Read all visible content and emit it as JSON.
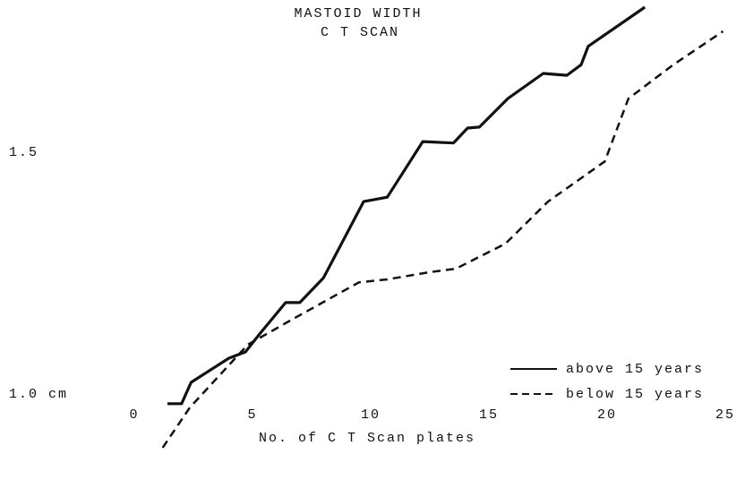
{
  "chart_data": {
    "type": "line",
    "title": "MASTOID WIDTH",
    "subtitle": "C T SCAN",
    "xlabel": "No. of C T Scan plates",
    "xlim": [
      0,
      25
    ],
    "xticks": [
      0,
      5,
      10,
      15,
      20,
      25
    ],
    "ylim": [
      0.8,
      1.8
    ],
    "yticks": [
      {
        "value": 1.0,
        "label": "1.0 cm"
      },
      1.5
    ],
    "grid": false,
    "legend": "lower right",
    "series": [
      {
        "name": "above 15 years",
        "color": "#111111",
        "style": "solid",
        "x": [
          1.4,
          2.0,
          2.4,
          4.0,
          4.7,
          5.3,
          6.4,
          7.0,
          8.0,
          9.7,
          10.7,
          12.2,
          13.5,
          14.1,
          14.6,
          15.8,
          17.3,
          18.3,
          18.9,
          19.2,
          21.6
        ],
        "values": [
          0.98,
          0.98,
          1.024,
          1.074,
          1.087,
          1.124,
          1.189,
          1.189,
          1.24,
          1.398,
          1.407,
          1.522,
          1.519,
          1.55,
          1.552,
          1.611,
          1.663,
          1.659,
          1.681,
          1.719,
          1.8
        ]
      },
      {
        "name": "below 15 years",
        "color": "#111111",
        "style": "dashed",
        "x": [
          1.2,
          2.35,
          4.8,
          6.6,
          9.5,
          10.7,
          12.5,
          13.6,
          15.7,
          17.5,
          19.9,
          20.9,
          22.8,
          24.9
        ],
        "values": [
          0.889,
          0.972,
          1.102,
          1.152,
          1.231,
          1.237,
          1.252,
          1.259,
          1.311,
          1.398,
          1.481,
          1.611,
          1.681,
          1.75
        ]
      }
    ]
  }
}
